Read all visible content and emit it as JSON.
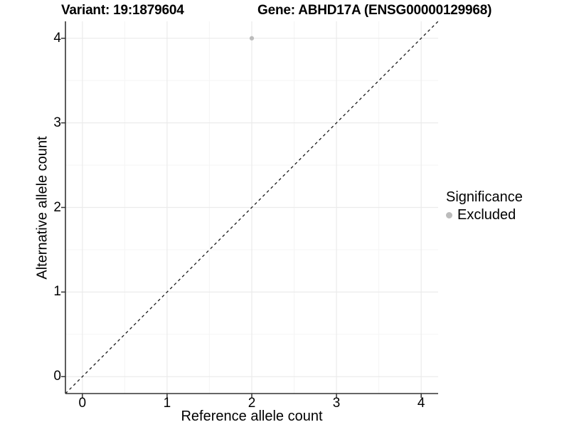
{
  "header": {
    "variant_title": "Variant: 19:1879604",
    "gene_title": "Gene: ABHD17A (ENSG00000129968)"
  },
  "chart_data": {
    "type": "scatter",
    "title_left": "Variant: 19:1879604",
    "title_right": "Gene: ABHD17A (ENSG00000129968)",
    "xlabel": "Reference allele count",
    "ylabel": "Alternative allele count",
    "xlim": [
      -0.2,
      4.2
    ],
    "ylim": [
      -0.2,
      4.2
    ],
    "x_ticks": [
      0,
      1,
      2,
      3,
      4
    ],
    "y_ticks": [
      0,
      1,
      2,
      3,
      4
    ],
    "minor_ticks": [
      0.5,
      1.5,
      2.5,
      3.5
    ],
    "grid": true,
    "legend_position": "right",
    "series": [
      {
        "name": "Excluded",
        "marker": "circle",
        "color": "#bcbcbc",
        "points": [
          {
            "x": 2,
            "y": 4
          }
        ]
      }
    ],
    "reference_line": {
      "type": "identity",
      "style": "dashed",
      "color": "#1a1a1a",
      "from": [
        -0.2,
        -0.2
      ],
      "to": [
        4.2,
        4.2
      ]
    },
    "legend": {
      "title": "Significance",
      "entries": [
        {
          "label": "Excluded",
          "color": "#bcbcbc",
          "marker": "circle"
        }
      ]
    },
    "colors": {
      "grid_major": "#ebebeb",
      "grid_minor": "#f5f5f5",
      "axis_line": "#333333",
      "tick_mark": "#333333",
      "point": "#bcbcbc",
      "text": "#000000",
      "background": "#ffffff"
    }
  }
}
